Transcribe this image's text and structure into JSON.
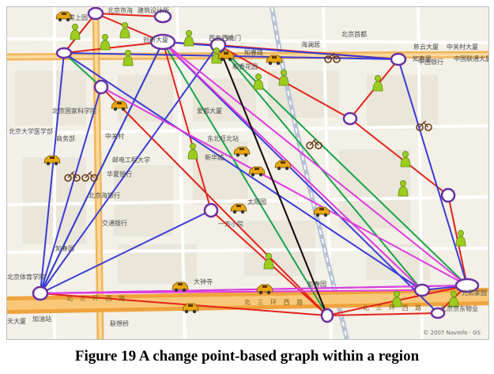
{
  "caption": "Figure 19 A change point-based graph within a region",
  "attribution": "© 2007 Navinfo · GS",
  "colors": {
    "node_stroke": "#6a2fa0",
    "edge_red": "#e3231b",
    "edge_blue": "#3b3bd6",
    "edge_green": "#1aa34a",
    "edge_magenta": "#e03be0",
    "edge_black": "#111111",
    "road_major": "#f2b45a",
    "road_minor": "#ffffff",
    "block_fill": "#eae6da",
    "person_icon": "#9ccc1e",
    "car_icon": "#e8a70f",
    "bike_icon": "#6b3a17"
  },
  "icons": {
    "person": "pedestrian-icon",
    "car": "car-icon",
    "bike": "bicycle-icon"
  },
  "map_labels": {
    "l1": "常上园",
    "l2": "北京市海",
    "l3": "建筑设计所",
    "l4": "创新大厦",
    "l5": "西直门桥",
    "l6": "西北门",
    "l7": "海澜居",
    "l8": "慈云大厦",
    "l9": "中关村大厦",
    "l10": "知春路",
    "l11": "和香花园",
    "l12": "知春里",
    "l13": "中国银行",
    "l14": "中国联通大厦",
    "l15": "爱都大厦",
    "l16": "北京国家科学院",
    "l17": "北京大学医学部",
    "l18": "中关村",
    "l19": "商务部",
    "l20": "东北旺北站",
    "l21": "新华城",
    "l22": "邮电工程大学",
    "l23": "华夏银行",
    "l24": "太阳园",
    "l25": "北京海银行",
    "l26": "交通银行",
    "l27": "一方小院",
    "l28": "知春园",
    "l29": "北京体育学院",
    "l30": "大钟寺",
    "l31": "北 三 环 西 路",
    "l32": "北 三 环 西 路",
    "l33": "北 三 环 西 路",
    "l34": "加油站",
    "l35": "联想桥",
    "l36": "北京京东物业",
    "l37": "知春园",
    "l38": "光熙家园",
    "l39": "北京首都",
    "l40": "天大厦"
  }
}
